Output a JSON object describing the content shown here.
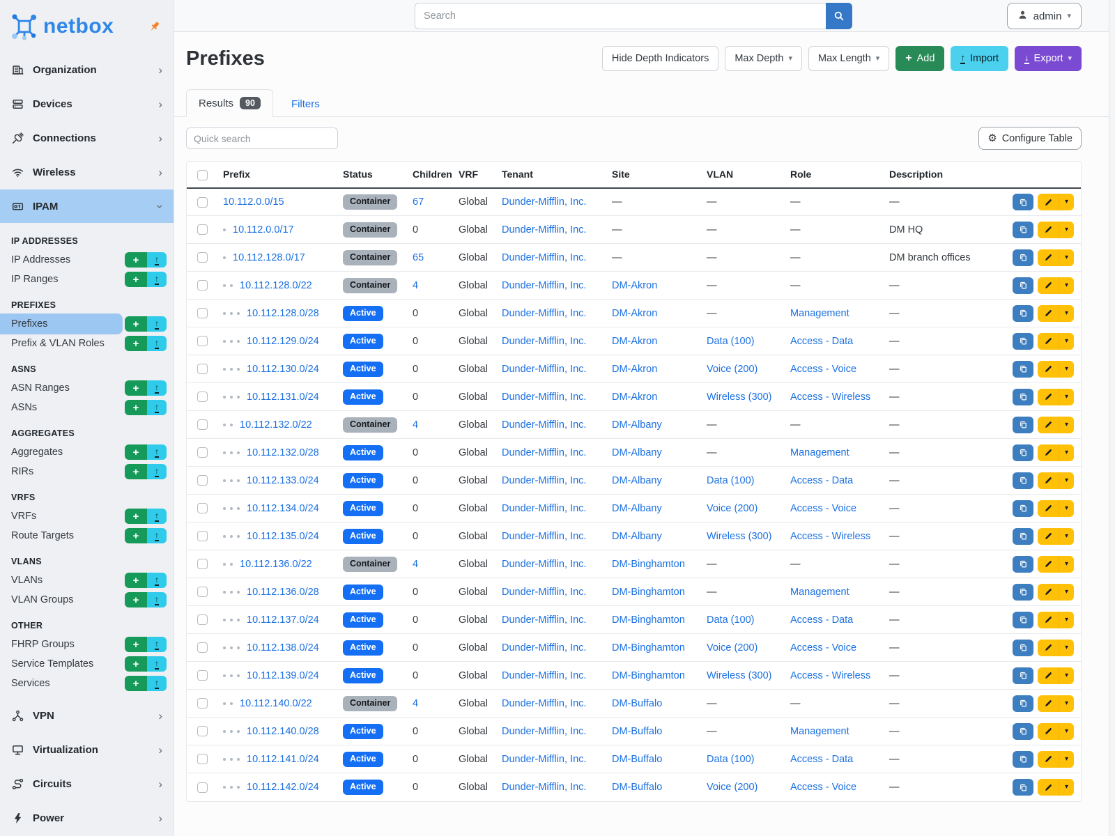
{
  "sidebar": {
    "logo_text": "netbox",
    "nav_top": [
      {
        "label": "Organization",
        "icon": "building-icon"
      },
      {
        "label": "Devices",
        "icon": "server-icon"
      },
      {
        "label": "Connections",
        "icon": "plug-icon"
      },
      {
        "label": "Wireless",
        "icon": "wifi-icon"
      },
      {
        "label": "IPAM",
        "icon": "ipam-icon",
        "active": true,
        "expanded": true
      }
    ],
    "sections": [
      {
        "title": "IP ADDRESSES",
        "items": [
          {
            "label": "IP Addresses"
          },
          {
            "label": "IP Ranges"
          }
        ]
      },
      {
        "title": "PREFIXES",
        "items": [
          {
            "label": "Prefixes",
            "active": true
          },
          {
            "label": "Prefix & VLAN Roles"
          }
        ]
      },
      {
        "title": "ASNS",
        "items": [
          {
            "label": "ASN Ranges"
          },
          {
            "label": "ASNs"
          }
        ]
      },
      {
        "title": "AGGREGATES",
        "items": [
          {
            "label": "Aggregates"
          },
          {
            "label": "RIRs"
          }
        ]
      },
      {
        "title": "VRFS",
        "items": [
          {
            "label": "VRFs"
          },
          {
            "label": "Route Targets"
          }
        ]
      },
      {
        "title": "VLANS",
        "items": [
          {
            "label": "VLANs"
          },
          {
            "label": "VLAN Groups"
          }
        ]
      },
      {
        "title": "OTHER",
        "items": [
          {
            "label": "FHRP Groups"
          },
          {
            "label": "Service Templates"
          },
          {
            "label": "Services"
          }
        ]
      }
    ],
    "nav_bottom": [
      {
        "label": "VPN",
        "icon": "network-icon"
      },
      {
        "label": "Virtualization",
        "icon": "monitor-icon"
      },
      {
        "label": "Circuits",
        "icon": "route-icon"
      },
      {
        "label": "Power",
        "icon": "bolt-icon"
      }
    ]
  },
  "topbar": {
    "search_placeholder": "Search",
    "user": "admin"
  },
  "page": {
    "title": "Prefixes",
    "buttons": {
      "hide_depth": "Hide Depth Indicators",
      "max_depth": "Max Depth",
      "max_length": "Max Length",
      "add": "Add",
      "import": "Import",
      "export": "Export"
    }
  },
  "tabs": {
    "results": "Results",
    "results_count": "90",
    "filters": "Filters"
  },
  "toolbar": {
    "quick_search_placeholder": "Quick search",
    "configure": "Configure Table"
  },
  "table": {
    "columns": [
      {
        "key": "prefix",
        "label": "Prefix"
      },
      {
        "key": "status",
        "label": "Status"
      },
      {
        "key": "children",
        "label": "Children"
      },
      {
        "key": "vrf",
        "label": "VRF"
      },
      {
        "key": "tenant",
        "label": "Tenant"
      },
      {
        "key": "site",
        "label": "Site"
      },
      {
        "key": "vlan",
        "label": "VLAN"
      },
      {
        "key": "role",
        "label": "Role"
      },
      {
        "key": "description",
        "label": "Description"
      }
    ],
    "rows": [
      {
        "depth": 0,
        "prefix": "10.112.0.0/15",
        "status": "Container",
        "children": "67",
        "children_link": true,
        "vrf": "Global",
        "tenant": "Dunder-Mifflin, Inc.",
        "site": "—",
        "vlan": "—",
        "role": "—",
        "description": "—"
      },
      {
        "depth": 1,
        "prefix": "10.112.0.0/17",
        "status": "Container",
        "children": "0",
        "children_link": false,
        "vrf": "Global",
        "tenant": "Dunder-Mifflin, Inc.",
        "site": "—",
        "vlan": "—",
        "role": "—",
        "description": "DM HQ"
      },
      {
        "depth": 1,
        "prefix": "10.112.128.0/17",
        "status": "Container",
        "children": "65",
        "children_link": true,
        "vrf": "Global",
        "tenant": "Dunder-Mifflin, Inc.",
        "site": "—",
        "vlan": "—",
        "role": "—",
        "description": "DM branch offices"
      },
      {
        "depth": 2,
        "prefix": "10.112.128.0/22",
        "status": "Container",
        "children": "4",
        "children_link": true,
        "vrf": "Global",
        "tenant": "Dunder-Mifflin, Inc.",
        "site": "DM-Akron",
        "vlan": "—",
        "role": "—",
        "description": "—"
      },
      {
        "depth": 3,
        "prefix": "10.112.128.0/28",
        "status": "Active",
        "children": "0",
        "children_link": false,
        "vrf": "Global",
        "tenant": "Dunder-Mifflin, Inc.",
        "site": "DM-Akron",
        "vlan": "—",
        "role": "Management",
        "description": "—"
      },
      {
        "depth": 3,
        "prefix": "10.112.129.0/24",
        "status": "Active",
        "children": "0",
        "children_link": false,
        "vrf": "Global",
        "tenant": "Dunder-Mifflin, Inc.",
        "site": "DM-Akron",
        "vlan": "Data (100)",
        "role": "Access - Data",
        "description": "—"
      },
      {
        "depth": 3,
        "prefix": "10.112.130.0/24",
        "status": "Active",
        "children": "0",
        "children_link": false,
        "vrf": "Global",
        "tenant": "Dunder-Mifflin, Inc.",
        "site": "DM-Akron",
        "vlan": "Voice (200)",
        "role": "Access - Voice",
        "description": "—"
      },
      {
        "depth": 3,
        "prefix": "10.112.131.0/24",
        "status": "Active",
        "children": "0",
        "children_link": false,
        "vrf": "Global",
        "tenant": "Dunder-Mifflin, Inc.",
        "site": "DM-Akron",
        "vlan": "Wireless (300)",
        "role": "Access - Wireless",
        "description": "—"
      },
      {
        "depth": 2,
        "prefix": "10.112.132.0/22",
        "status": "Container",
        "children": "4",
        "children_link": true,
        "vrf": "Global",
        "tenant": "Dunder-Mifflin, Inc.",
        "site": "DM-Albany",
        "vlan": "—",
        "role": "—",
        "description": "—"
      },
      {
        "depth": 3,
        "prefix": "10.112.132.0/28",
        "status": "Active",
        "children": "0",
        "children_link": false,
        "vrf": "Global",
        "tenant": "Dunder-Mifflin, Inc.",
        "site": "DM-Albany",
        "vlan": "—",
        "role": "Management",
        "description": "—"
      },
      {
        "depth": 3,
        "prefix": "10.112.133.0/24",
        "status": "Active",
        "children": "0",
        "children_link": false,
        "vrf": "Global",
        "tenant": "Dunder-Mifflin, Inc.",
        "site": "DM-Albany",
        "vlan": "Data (100)",
        "role": "Access - Data",
        "description": "—"
      },
      {
        "depth": 3,
        "prefix": "10.112.134.0/24",
        "status": "Active",
        "children": "0",
        "children_link": false,
        "vrf": "Global",
        "tenant": "Dunder-Mifflin, Inc.",
        "site": "DM-Albany",
        "vlan": "Voice (200)",
        "role": "Access - Voice",
        "description": "—"
      },
      {
        "depth": 3,
        "prefix": "10.112.135.0/24",
        "status": "Active",
        "children": "0",
        "children_link": false,
        "vrf": "Global",
        "tenant": "Dunder-Mifflin, Inc.",
        "site": "DM-Albany",
        "vlan": "Wireless (300)",
        "role": "Access - Wireless",
        "description": "—"
      },
      {
        "depth": 2,
        "prefix": "10.112.136.0/22",
        "status": "Container",
        "children": "4",
        "children_link": true,
        "vrf": "Global",
        "tenant": "Dunder-Mifflin, Inc.",
        "site": "DM-Binghamton",
        "vlan": "—",
        "role": "—",
        "description": "—"
      },
      {
        "depth": 3,
        "prefix": "10.112.136.0/28",
        "status": "Active",
        "children": "0",
        "children_link": false,
        "vrf": "Global",
        "tenant": "Dunder-Mifflin, Inc.",
        "site": "DM-Binghamton",
        "vlan": "—",
        "role": "Management",
        "description": "—"
      },
      {
        "depth": 3,
        "prefix": "10.112.137.0/24",
        "status": "Active",
        "children": "0",
        "children_link": false,
        "vrf": "Global",
        "tenant": "Dunder-Mifflin, Inc.",
        "site": "DM-Binghamton",
        "vlan": "Data (100)",
        "role": "Access - Data",
        "description": "—"
      },
      {
        "depth": 3,
        "prefix": "10.112.138.0/24",
        "status": "Active",
        "children": "0",
        "children_link": false,
        "vrf": "Global",
        "tenant": "Dunder-Mifflin, Inc.",
        "site": "DM-Binghamton",
        "vlan": "Voice (200)",
        "role": "Access - Voice",
        "description": "—"
      },
      {
        "depth": 3,
        "prefix": "10.112.139.0/24",
        "status": "Active",
        "children": "0",
        "children_link": false,
        "vrf": "Global",
        "tenant": "Dunder-Mifflin, Inc.",
        "site": "DM-Binghamton",
        "vlan": "Wireless (300)",
        "role": "Access - Wireless",
        "description": "—"
      },
      {
        "depth": 2,
        "prefix": "10.112.140.0/22",
        "status": "Container",
        "children": "4",
        "children_link": true,
        "vrf": "Global",
        "tenant": "Dunder-Mifflin, Inc.",
        "site": "DM-Buffalo",
        "vlan": "—",
        "role": "—",
        "description": "—"
      },
      {
        "depth": 3,
        "prefix": "10.112.140.0/28",
        "status": "Active",
        "children": "0",
        "children_link": false,
        "vrf": "Global",
        "tenant": "Dunder-Mifflin, Inc.",
        "site": "DM-Buffalo",
        "vlan": "—",
        "role": "Management",
        "description": "—"
      },
      {
        "depth": 3,
        "prefix": "10.112.141.0/24",
        "status": "Active",
        "children": "0",
        "children_link": false,
        "vrf": "Global",
        "tenant": "Dunder-Mifflin, Inc.",
        "site": "DM-Buffalo",
        "vlan": "Data (100)",
        "role": "Access - Data",
        "description": "—"
      },
      {
        "depth": 3,
        "prefix": "10.112.142.0/24",
        "status": "Active",
        "children": "0",
        "children_link": false,
        "vrf": "Global",
        "tenant": "Dunder-Mifflin, Inc.",
        "site": "DM-Buffalo",
        "vlan": "Voice (200)",
        "role": "Access - Voice",
        "description": "—"
      }
    ]
  },
  "colors": {
    "brand_blue": "#2e86e8",
    "link_blue": "#1a70e2",
    "active_nav_bg": "#a6cdf3",
    "active_subnav_bg": "#9cc7f3",
    "status_active_bg": "#156ff5",
    "status_container_bg": "#a9b1ba",
    "button_green": "#278a57",
    "button_cyan": "#4bd0ee",
    "button_purple": "#7a4ad2",
    "button_yellow": "#ffc107",
    "copy_button_blue": "#3d7ec0",
    "search_button_blue": "#3578c8",
    "pin_orange": "#f8822a"
  }
}
